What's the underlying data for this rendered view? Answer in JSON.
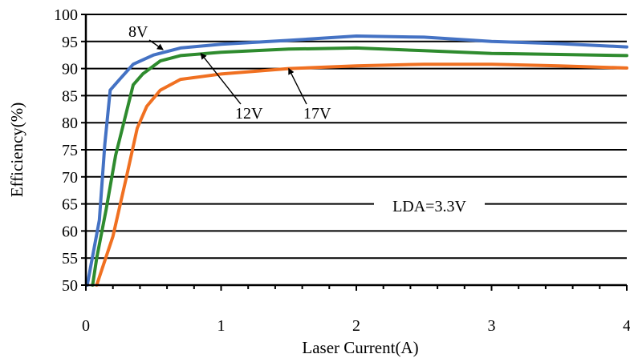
{
  "chart_data": {
    "type": "line",
    "xlabel": "Laser Current(A)",
    "ylabel": "Efficiency(%)",
    "xlim": [
      0,
      4
    ],
    "ylim": [
      50,
      100
    ],
    "x_ticks": [
      0,
      1,
      2,
      3,
      4
    ],
    "y_ticks": [
      50,
      55,
      60,
      65,
      70,
      75,
      80,
      85,
      90,
      95,
      100
    ],
    "x_tick_labels": [
      "0",
      "1",
      "2",
      "3",
      "4"
    ],
    "y_tick_labels": [
      "50",
      "55",
      "60",
      "65",
      "70",
      "75",
      "80",
      "85",
      "90",
      "95",
      "100"
    ],
    "grid": "horizontal",
    "legend": "none",
    "series": [
      {
        "name": "8V",
        "color": "#4472c4",
        "points": [
          [
            0.01,
            50
          ],
          [
            0.04,
            54
          ],
          [
            0.1,
            62
          ],
          [
            0.14,
            76
          ],
          [
            0.18,
            86
          ],
          [
            0.25,
            88
          ],
          [
            0.35,
            90.8
          ],
          [
            0.5,
            92.5
          ],
          [
            0.7,
            93.8
          ],
          [
            1.0,
            94.5
          ],
          [
            1.5,
            95.2
          ],
          [
            2.0,
            96.0
          ],
          [
            2.5,
            95.8
          ],
          [
            3.0,
            95.0
          ],
          [
            3.5,
            94.6
          ],
          [
            4.0,
            94.0
          ]
        ]
      },
      {
        "name": "12V",
        "color": "#2e8b2e",
        "points": [
          [
            0.05,
            50
          ],
          [
            0.08,
            55
          ],
          [
            0.15,
            64
          ],
          [
            0.22,
            74
          ],
          [
            0.3,
            82
          ],
          [
            0.35,
            87
          ],
          [
            0.42,
            89
          ],
          [
            0.55,
            91.4
          ],
          [
            0.7,
            92.4
          ],
          [
            1.0,
            93.0
          ],
          [
            1.5,
            93.6
          ],
          [
            2.0,
            93.8
          ],
          [
            2.5,
            93.3
          ],
          [
            3.0,
            92.8
          ],
          [
            3.5,
            92.6
          ],
          [
            4.0,
            92.4
          ]
        ]
      },
      {
        "name": "17V",
        "color": "#f07021",
        "points": [
          [
            0.08,
            50
          ],
          [
            0.12,
            53
          ],
          [
            0.2,
            59
          ],
          [
            0.3,
            70
          ],
          [
            0.38,
            79
          ],
          [
            0.45,
            83
          ],
          [
            0.55,
            86
          ],
          [
            0.7,
            88
          ],
          [
            1.0,
            89
          ],
          [
            1.5,
            90
          ],
          [
            2.0,
            90.5
          ],
          [
            2.5,
            90.8
          ],
          [
            3.0,
            90.8
          ],
          [
            3.5,
            90.5
          ],
          [
            4.0,
            90.1
          ]
        ]
      }
    ],
    "annotations": [
      {
        "text": "8V",
        "target_series": "8V",
        "target": [
          0.57,
          93.5
        ]
      },
      {
        "text": "12V",
        "target_series": "12V",
        "target": [
          0.85,
          92.8
        ]
      },
      {
        "text": "17V",
        "target_series": "17V",
        "target": [
          1.5,
          90.0
        ]
      },
      {
        "text": "LDA=3.3V"
      }
    ]
  }
}
